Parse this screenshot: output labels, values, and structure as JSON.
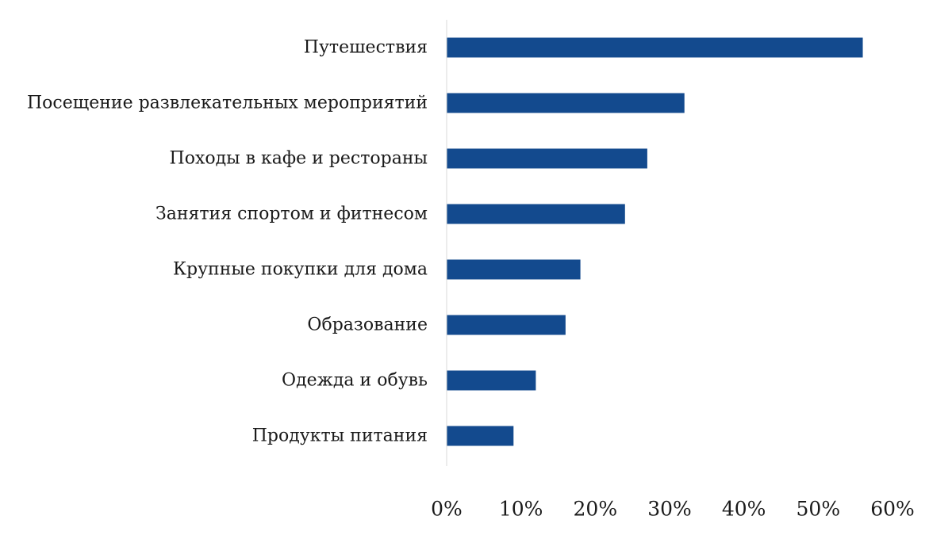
{
  "chart_data": {
    "type": "bar",
    "orientation": "horizontal",
    "categories": [
      "Путешествия",
      "Посещение развлекательных мероприятий",
      "Походы в кафе и рестораны",
      "Занятия спортом и фитнесом",
      "Крупные покупки для дома",
      "Образование",
      "Одежда и обувь",
      "Продукты питания"
    ],
    "values": [
      56,
      32,
      27,
      24,
      18,
      16,
      12,
      9
    ],
    "value_unit": "%",
    "xlim": [
      0,
      60
    ],
    "x_ticks": [
      0,
      10,
      20,
      30,
      40,
      50,
      60
    ],
    "x_tick_labels": [
      "0%",
      "10%",
      "20%",
      "30%",
      "40%",
      "50%",
      "60%"
    ],
    "bar_color": "#134a8e",
    "grid": false,
    "legend": "none",
    "title": "",
    "xlabel": "",
    "ylabel": ""
  }
}
